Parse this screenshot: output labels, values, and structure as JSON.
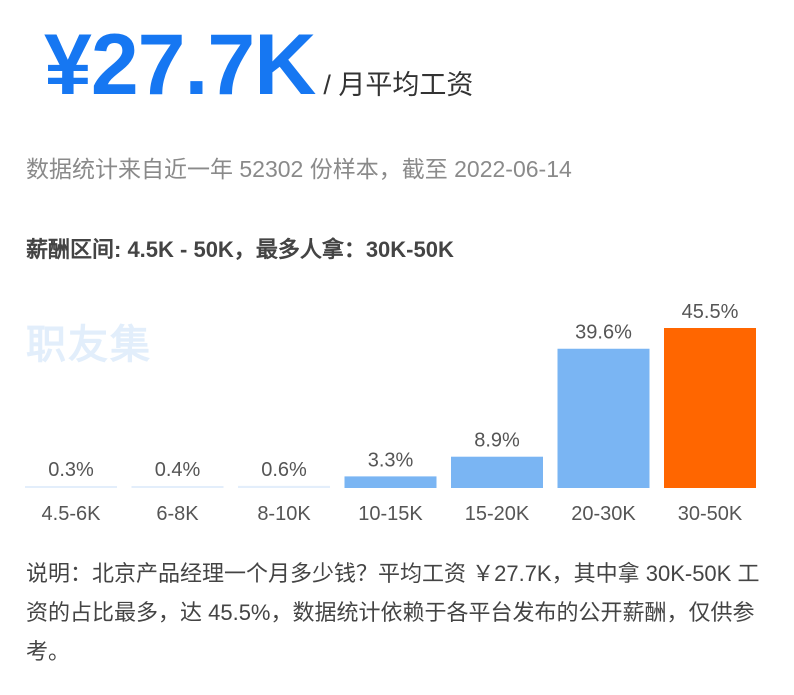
{
  "header": {
    "amount": "¥27.7K",
    "unit": "/ 月平均工资"
  },
  "subtitle": "数据统计来自近一年 52302 份样本，截至 2022-06-14",
  "range_text": "薪酬区间: 4.5K - 50K，最多人拿：30K-50K",
  "watermark": "职友集",
  "note": "说明：北京产品经理一个月多少钱？平均工资 ￥27.7K，其中拿 30K-50K 工资的占比最多，达 45.5%，数据统计依赖于各平台发布的公开薪酬，仅供参考。",
  "colors": {
    "bar_light": "#e3eefb",
    "bar_mid": "#7ab5f3",
    "bar_highlight": "#ff6600",
    "accent": "#1677f2"
  },
  "chart_data": {
    "type": "bar",
    "categories": [
      "4.5-6K",
      "6-8K",
      "8-10K",
      "10-15K",
      "15-20K",
      "20-30K",
      "30-50K"
    ],
    "values": [
      0.3,
      0.4,
      0.6,
      3.3,
      8.9,
      39.6,
      45.5
    ],
    "value_labels": [
      "0.3%",
      "0.4%",
      "0.6%",
      "3.3%",
      "8.9%",
      "39.6%",
      "45.5%"
    ],
    "highlight_index": 6,
    "ylim": [
      0,
      45.5
    ],
    "grid": false
  }
}
